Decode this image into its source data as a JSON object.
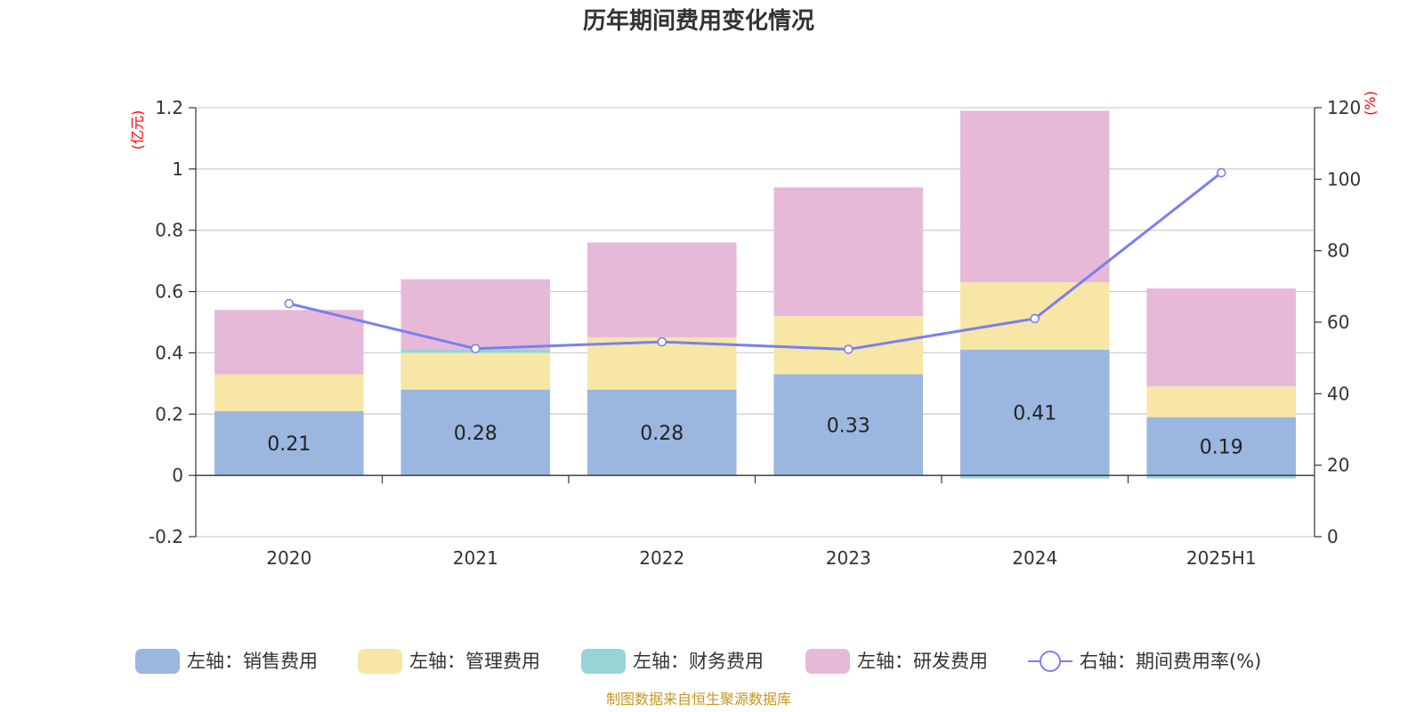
{
  "chart_data": {
    "type": "bar",
    "title": "历年期间费用变化情况",
    "categories": [
      "2020",
      "2021",
      "2022",
      "2023",
      "2024",
      "2025H1"
    ],
    "left_axis": {
      "unit": "(亿元)",
      "ylim": [
        -0.2,
        1.2
      ],
      "ticks": [
        "1.2",
        "1",
        "0.8",
        "0.6",
        "0.4",
        "0.2",
        "0",
        "-0.2"
      ],
      "tick_values": [
        1.2,
        1.0,
        0.8,
        0.6,
        0.4,
        0.2,
        0,
        -0.2
      ]
    },
    "right_axis": {
      "unit": "(%)",
      "ylim": [
        0,
        120
      ],
      "ticks": [
        "120",
        "100",
        "80",
        "60",
        "40",
        "20",
        "0"
      ],
      "tick_values": [
        120,
        100,
        80,
        60,
        40,
        20,
        0
      ]
    },
    "grid": true,
    "legend_position": "bottom",
    "series": [
      {
        "name": "左轴：销售费用",
        "kind": "bar",
        "axis": "left",
        "color": "#9bb7e0",
        "values": [
          0.21,
          0.28,
          0.28,
          0.33,
          0.41,
          0.19
        ],
        "labels": [
          "0.21",
          "0.28",
          "0.28",
          "0.33",
          "0.41",
          "0.19"
        ]
      },
      {
        "name": "左轴：管理费用",
        "kind": "bar",
        "axis": "left",
        "color": "#f7e6a6",
        "values": [
          0.12,
          0.12,
          0.17,
          0.19,
          0.22,
          0.1
        ]
      },
      {
        "name": "左轴：财务费用",
        "kind": "bar",
        "axis": "left",
        "color": "#96d4d6",
        "values": [
          0.0,
          0.01,
          0.0,
          0.0,
          -0.01,
          -0.01
        ]
      },
      {
        "name": "左轴：研发费用",
        "kind": "bar",
        "axis": "left",
        "color": "#e7b9d9",
        "values": [
          0.21,
          0.23,
          0.31,
          0.42,
          0.56,
          0.32
        ]
      },
      {
        "name": "右轴：期间费用率(%)",
        "kind": "line",
        "axis": "right",
        "color": "#7b7ff0",
        "values": [
          65.2,
          52.6,
          54.5,
          52.4,
          61.0,
          101.8
        ]
      }
    ]
  },
  "source": "制图数据来自恒生聚源数据库"
}
